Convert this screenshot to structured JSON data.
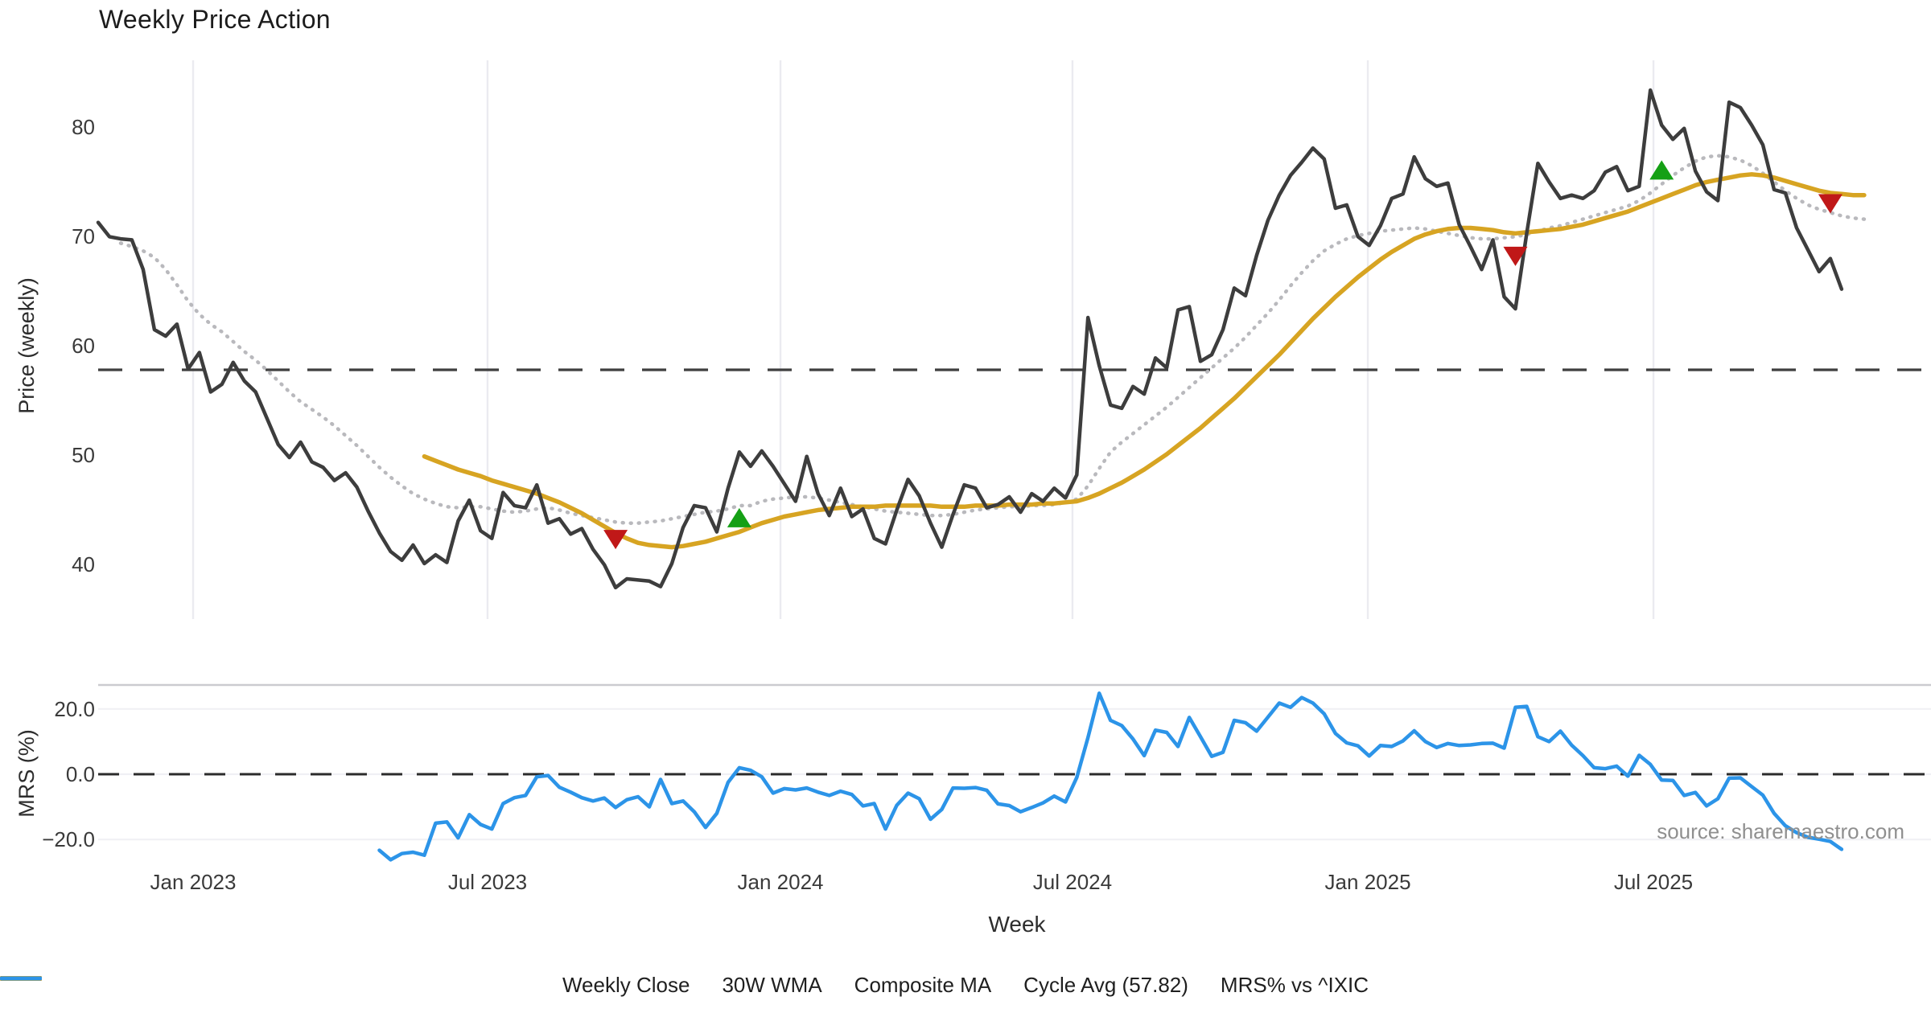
{
  "title": "Weekly Price Action",
  "source": "source: sharemaestro.com",
  "xlabel": "Week",
  "price_panel": {
    "ylabel": "Price (weekly)"
  },
  "mrs_panel": {
    "ylabel": "MRS (%)"
  },
  "colors": {
    "background": "#ffffff",
    "close": "#3d3d3d",
    "wma": "#D7A422",
    "composite": "#b9b9bd",
    "cycle_avg": "#3f3f3f",
    "mrs": "#2C94E8",
    "sell_marker": "#C01818",
    "buy_marker": "#15A015",
    "gridline": "#ebebf0",
    "mrs_gridline": "#f0f0f4",
    "panel_border": "#cbcbd0",
    "tick_text": "#3a3a3a"
  },
  "legend": {
    "items": [
      {
        "label": "Weekly Close",
        "style": "solid",
        "color_key": "close"
      },
      {
        "label": "30W WMA",
        "style": "solid",
        "color_key": "wma"
      },
      {
        "label": "Composite MA",
        "style": "dotted",
        "color_key": "composite"
      },
      {
        "label": "Cycle Avg (57.82)",
        "style": "dashed",
        "color_key": "cycle_avg"
      },
      {
        "label": "MRS% vs ^IXIC",
        "style": "solid",
        "color_key": "mrs"
      }
    ]
  },
  "chart_data": {
    "type": "line",
    "title": "Weekly Price Action",
    "xlabel": "Week",
    "x_unit": "week_index",
    "xticks": [
      {
        "label": "Jan 2023",
        "week": 8.44
      },
      {
        "label": "Jul 2023",
        "week": 34.62
      },
      {
        "label": "Jan 2024",
        "week": 60.66
      },
      {
        "label": "Jul 2024",
        "week": 86.62
      },
      {
        "label": "Jan 2025",
        "week": 112.88
      },
      {
        "label": "Jul 2025",
        "week": 138.27
      }
    ],
    "panels": [
      {
        "id": "price",
        "ylabel": "Price (weekly)",
        "ylim": [
          35.2,
          86.2
        ],
        "yticks": [
          {
            "label": "80",
            "v": 80
          },
          {
            "label": "70",
            "v": 70
          },
          {
            "label": "60",
            "v": 60
          },
          {
            "label": "50",
            "v": 50
          },
          {
            "label": "40",
            "v": 40
          }
        ],
        "cycle_avg": 57.82,
        "series": [
          {
            "name": "Weekly Close",
            "color_key": "close",
            "style": "solid",
            "start_week": 0,
            "values": [
              71.3,
              70.0,
              69.8,
              69.7,
              67.0,
              61.5,
              60.9,
              62.0,
              57.9,
              59.4,
              55.8,
              56.5,
              58.5,
              56.8,
              55.8,
              53.4,
              51.0,
              49.8,
              51.2,
              49.4,
              48.9,
              47.7,
              48.4,
              47.1,
              44.9,
              42.9,
              41.2,
              40.4,
              41.8,
              40.1,
              40.9,
              40.2,
              44.0,
              45.9,
              43.1,
              42.4,
              46.6,
              45.4,
              45.2,
              47.3,
              43.8,
              44.2,
              42.8,
              43.3,
              41.4,
              40.0,
              37.9,
              38.7,
              38.6,
              38.5,
              38.0,
              40.1,
              43.4,
              45.4,
              45.2,
              43.0,
              47.0,
              50.3,
              49.0,
              50.4,
              49.0,
              47.4,
              45.8,
              49.9,
              46.5,
              44.5,
              47.0,
              44.4,
              45.1,
              42.4,
              41.9,
              45.0,
              47.8,
              46.3,
              43.8,
              41.6,
              44.6,
              47.3,
              47.0,
              45.2,
              45.5,
              46.2,
              44.8,
              46.5,
              45.8,
              47.0,
              46.1,
              48.2,
              62.6,
              58.2,
              54.6,
              54.3,
              56.3,
              55.6,
              58.9,
              58.0,
              63.3,
              63.6,
              58.6,
              59.2,
              61.5,
              65.3,
              64.6,
              68.3,
              71.5,
              73.8,
              75.6,
              76.8,
              78.1,
              77.1,
              72.6,
              72.9,
              70.0,
              69.2,
              71.0,
              73.5,
              73.9,
              77.3,
              75.3,
              74.6,
              74.9,
              71.1,
              69.1,
              67.0,
              69.7,
              64.5,
              63.4,
              70.3,
              76.7,
              75.0,
              73.5,
              73.8,
              73.5,
              74.2,
              75.9,
              76.4,
              74.2,
              74.6,
              83.4,
              80.2,
              78.9,
              79.9,
              76.0,
              74.1,
              73.3,
              82.3,
              81.8,
              80.2,
              78.4,
              74.3,
              74.0,
              70.8,
              68.8,
              66.8,
              68.0,
              65.2
            ]
          },
          {
            "name": "30W WMA",
            "color_key": "wma",
            "style": "solid",
            "start_week": 29,
            "values": [
              49.9,
              49.5,
              49.1,
              48.7,
              48.4,
              48.1,
              47.7,
              47.4,
              47.1,
              46.8,
              46.5,
              46.1,
              45.7,
              45.2,
              44.7,
              44.1,
              43.5,
              42.9,
              42.4,
              42.0,
              41.8,
              41.7,
              41.6,
              41.7,
              41.9,
              42.1,
              42.4,
              42.7,
              43.0,
              43.4,
              43.8,
              44.1,
              44.4,
              44.6,
              44.8,
              45.0,
              45.1,
              45.2,
              45.3,
              45.3,
              45.3,
              45.4,
              45.4,
              45.4,
              45.4,
              45.4,
              45.3,
              45.3,
              45.3,
              45.4,
              45.4,
              45.4,
              45.5,
              45.5,
              45.5,
              45.6,
              45.6,
              45.7,
              45.8,
              46.1,
              46.5,
              47.0,
              47.5,
              48.1,
              48.7,
              49.4,
              50.1,
              50.9,
              51.7,
              52.5,
              53.4,
              54.3,
              55.2,
              56.2,
              57.2,
              58.2,
              59.2,
              60.3,
              61.4,
              62.5,
              63.5,
              64.5,
              65.4,
              66.3,
              67.1,
              67.9,
              68.6,
              69.2,
              69.8,
              70.2,
              70.5,
              70.7,
              70.8,
              70.8,
              70.7,
              70.6,
              70.4,
              70.3,
              70.4,
              70.5,
              70.6,
              70.7,
              70.9,
              71.1,
              71.4,
              71.7,
              72.0,
              72.3,
              72.7,
              73.1,
              73.5,
              73.9,
              74.3,
              74.7,
              75.0,
              75.2,
              75.4,
              75.6,
              75.7,
              75.6,
              75.4,
              75.1,
              74.8,
              74.5,
              74.2,
              74.0,
              73.9,
              73.8,
              73.8
            ]
          },
          {
            "name": "Composite MA",
            "color_key": "composite",
            "style": "dotted",
            "start_week": 2,
            "values": [
              69.4,
              69.1,
              68.7,
              68.1,
              67.0,
              65.6,
              64.1,
              62.9,
              62.0,
              61.3,
              60.4,
              59.5,
              58.7,
              57.8,
              56.8,
              55.8,
              54.9,
              54.2,
              53.5,
              52.7,
              51.8,
              50.9,
              49.9,
              48.9,
              48.0,
              47.2,
              46.5,
              46.0,
              45.6,
              45.3,
              45.2,
              45.3,
              45.3,
              45.1,
              44.9,
              44.8,
              44.9,
              45.1,
              45.2,
              45.0,
              44.7,
              44.5,
              44.3,
              44.1,
              43.9,
              43.8,
              43.8,
              43.9,
              44.0,
              44.2,
              44.4,
              44.6,
              44.8,
              44.9,
              45.1,
              45.4,
              45.4,
              45.8,
              46.0,
              46.1,
              46.2,
              46.2,
              46.1,
              45.9,
              45.7,
              45.5,
              45.3,
              45.1,
              44.9,
              44.8,
              44.7,
              44.6,
              44.5,
              44.5,
              44.6,
              44.8,
              45.0,
              45.1,
              45.2,
              45.3,
              45.3,
              45.4,
              45.4,
              45.5,
              45.7,
              46.0,
              47.2,
              48.8,
              50.3,
              51.2,
              52.0,
              52.8,
              53.6,
              54.4,
              55.3,
              56.2,
              57.1,
              58.0,
              58.9,
              59.8,
              60.8,
              61.9,
              63.0,
              64.2,
              65.5,
              66.7,
              67.8,
              68.7,
              69.3,
              69.8,
              70.1,
              70.3,
              70.5,
              70.6,
              70.7,
              70.8,
              70.7,
              70.5,
              70.3,
              70.1,
              69.9,
              69.8,
              69.8,
              69.9,
              70.0,
              70.2,
              70.5,
              70.8,
              71.0,
              71.3,
              71.6,
              71.9,
              72.2,
              72.5,
              72.8,
              73.3,
              74.0,
              74.8,
              75.6,
              76.3,
              76.9,
              77.3,
              77.4,
              77.3,
              77.0,
              76.5,
              75.8,
              75.0,
              74.2,
              73.5,
              72.9,
              72.5,
              72.2,
              71.9,
              71.7,
              71.6
            ]
          }
        ],
        "markers": [
          {
            "type": "sell",
            "week": 46,
            "v": 42.3
          },
          {
            "type": "buy",
            "week": 57,
            "v": 44.3
          },
          {
            "type": "sell",
            "week": 126,
            "v": 68.2
          },
          {
            "type": "buy",
            "week": 139,
            "v": 76.1
          },
          {
            "type": "sell",
            "week": 154,
            "v": 73.0
          }
        ]
      },
      {
        "id": "mrs",
        "ylabel": "MRS (%)",
        "ylim": [
          -28.5,
          27.5
        ],
        "yticks": [
          {
            "label": "20.0",
            "v": 20
          },
          {
            "label": "0.0",
            "v": 0
          },
          {
            "label": "−20.0",
            "v": -20
          }
        ],
        "zero_line": 0,
        "series": [
          {
            "name": "MRS% vs ^IXIC",
            "color_key": "mrs",
            "style": "solid",
            "start_week": 25,
            "values": [
              -23.3,
              -26.2,
              -24.3,
              -23.9,
              -24.8,
              -15.0,
              -14.6,
              -19.5,
              -12.4,
              -15.4,
              -16.8,
              -9.0,
              -7.2,
              -6.5,
              -0.8,
              -0.4,
              -4.0,
              -5.5,
              -7.2,
              -8.2,
              -7.3,
              -10.2,
              -7.8,
              -6.9,
              -10.0,
              -1.6,
              -9.0,
              -8.2,
              -11.5,
              -16.3,
              -12.0,
              -2.5,
              2.0,
              1.2,
              -0.8,
              -5.8,
              -4.4,
              -4.8,
              -4.2,
              -5.5,
              -6.5,
              -5.2,
              -6.2,
              -9.7,
              -9.0,
              -16.8,
              -9.5,
              -5.8,
              -7.5,
              -13.8,
              -10.8,
              -4.2,
              -4.3,
              -4.1,
              -4.9,
              -9.1,
              -9.6,
              -11.5,
              -10.2,
              -8.8,
              -6.7,
              -8.5,
              -1.0,
              11.2,
              24.8,
              16.5,
              14.9,
              10.8,
              5.7,
              13.5,
              12.8,
              8.5,
              17.4,
              11.5,
              5.5,
              6.7,
              16.5,
              15.8,
              13.2,
              17.5,
              21.8,
              20.5,
              23.5,
              21.8,
              18.5,
              12.5,
              9.6,
              8.7,
              5.6,
              8.8,
              8.5,
              10.2,
              13.3,
              10.0,
              8.2,
              9.4,
              8.8,
              9.0,
              9.4,
              9.5,
              8.0,
              20.5,
              20.8,
              11.5,
              10.0,
              13.2,
              8.9,
              5.7,
              2.0,
              1.7,
              2.5,
              -0.6,
              5.8,
              3.0,
              -1.8,
              -1.9,
              -6.5,
              -5.6,
              -9.7,
              -7.5,
              -1.2,
              -1.1,
              -3.8,
              -6.4,
              -12.0,
              -15.8,
              -17.9,
              -19.3,
              -19.9,
              -20.6,
              -23.0
            ]
          }
        ]
      }
    ]
  }
}
